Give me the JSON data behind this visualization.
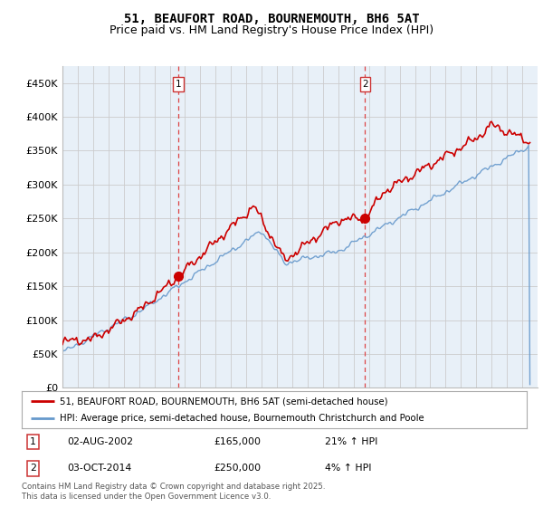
{
  "title": "51, BEAUFORT ROAD, BOURNEMOUTH, BH6 5AT",
  "subtitle": "Price paid vs. HM Land Registry's House Price Index (HPI)",
  "ylabel_ticks": [
    "£0",
    "£50K",
    "£100K",
    "£150K",
    "£200K",
    "£250K",
    "£300K",
    "£350K",
    "£400K",
    "£450K"
  ],
  "ytick_values": [
    0,
    50000,
    100000,
    150000,
    200000,
    250000,
    300000,
    350000,
    400000,
    450000
  ],
  "ylim": [
    0,
    475000
  ],
  "xlim_start": 1995.0,
  "xlim_end": 2026.0,
  "purchase1": {
    "date_num": 2002.58,
    "price": 165000,
    "label": "1",
    "hpi_pct": "21% ↑ HPI",
    "date_str": "02-AUG-2002"
  },
  "purchase2": {
    "date_num": 2014.75,
    "price": 250000,
    "label": "2",
    "hpi_pct": "4% ↑ HPI",
    "date_str": "03-OCT-2014"
  },
  "line_color_red": "#CC0000",
  "line_color_blue": "#6699CC",
  "vline_color": "#DD4444",
  "plot_bg_color": "#E8F0F8",
  "background_color": "#FFFFFF",
  "grid_color": "#CCCCCC",
  "legend1": "51, BEAUFORT ROAD, BOURNEMOUTH, BH6 5AT (semi-detached house)",
  "legend2": "HPI: Average price, semi-detached house, Bournemouth Christchurch and Poole",
  "footer": "Contains HM Land Registry data © Crown copyright and database right 2025.\nThis data is licensed under the Open Government Licence v3.0.",
  "title_fontsize": 10,
  "subtitle_fontsize": 9,
  "tick_fontsize": 8
}
